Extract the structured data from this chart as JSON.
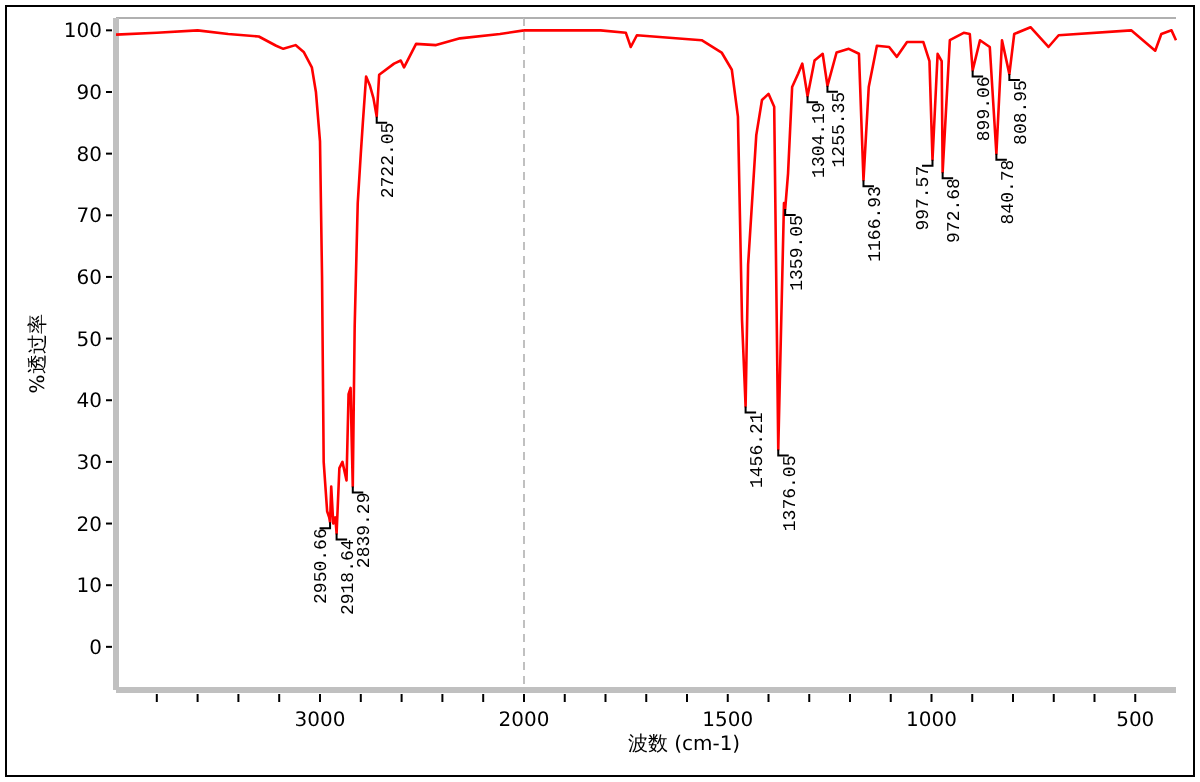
{
  "chart_data": [
    {
      "type": "line",
      "ylabel": "%透过率",
      "xlim": [
        4000,
        2000
      ],
      "ylim": [
        -7,
        102
      ],
      "xticks": [
        {
          "value": 3800,
          "label": null
        },
        {
          "value": 3600,
          "label": null
        },
        {
          "value": 3400,
          "label": null
        },
        {
          "value": 3200,
          "label": null
        },
        3000,
        {
          "value": 2800,
          "label": null
        },
        {
          "value": 2600,
          "label": null
        },
        {
          "value": 2400,
          "label": null
        },
        {
          "value": 2200,
          "label": null
        },
        2000
      ],
      "yticks": [
        0,
        10,
        20,
        30,
        40,
        50,
        60,
        70,
        80,
        90,
        100
      ],
      "series": [
        {
          "color": "#ff0000",
          "x": [
            4000,
            3800,
            3600,
            3450,
            3300,
            3215,
            3180,
            3120,
            3080,
            3040,
            3020,
            3000,
            2990,
            2982,
            2965,
            2955,
            2950.66,
            2945,
            2935,
            2925,
            2918.64,
            2905,
            2890,
            2870,
            2860,
            2850,
            2845,
            2839.29,
            2830,
            2815,
            2800,
            2790,
            2774,
            2755,
            2738,
            2722.05,
            2710,
            2637,
            2604,
            2588,
            2529,
            2431,
            2314,
            2118,
            2000
          ],
          "values": [
            99.3,
            99.6,
            100,
            99.4,
            99,
            97.5,
            97,
            97.6,
            96.5,
            94,
            90,
            82,
            60,
            30,
            22,
            21,
            20.2,
            26,
            20,
            21,
            18.4,
            29,
            30,
            27,
            41,
            42,
            34,
            26,
            52,
            72,
            80,
            85,
            92.5,
            91,
            89,
            86,
            92.8,
            94.6,
            95.1,
            94,
            97.8,
            97.6,
            98.7,
            99.4,
            100
          ]
        }
      ],
      "annotations": [
        {
          "text": "2950.66",
          "x": 2950.66,
          "y": 20.2
        },
        {
          "text": "2918.64",
          "x": 2918.64,
          "y": 18.4
        },
        {
          "text": "2839.29",
          "x": 2839.29,
          "y": 26
        },
        {
          "text": "2722.05",
          "x": 2722.05,
          "y": 86
        }
      ]
    },
    {
      "type": "line",
      "xlabel": "波数 (cm-1)",
      "xlim": [
        2000,
        400
      ],
      "ylim": [
        -7,
        102
      ],
      "tick_labels": "x",
      "xticks": [
        {
          "value": 2000,
          "label": null
        },
        {
          "value": 1900,
          "label": null
        },
        {
          "value": 1800,
          "label": null
        },
        {
          "value": 1700,
          "label": null
        },
        {
          "value": 1600,
          "label": null
        },
        1500,
        {
          "value": 1400,
          "label": null
        },
        {
          "value": 1300,
          "label": null
        },
        {
          "value": 1200,
          "label": null
        },
        {
          "value": 1100,
          "label": null
        },
        1000,
        {
          "value": 900,
          "label": null
        },
        {
          "value": 800,
          "label": null
        },
        {
          "value": 700,
          "label": null
        },
        {
          "value": 600,
          "label": null
        },
        500
      ],
      "yticks": [
        0,
        10,
        20,
        30,
        40,
        50,
        60,
        70,
        80,
        90,
        100
      ],
      "ref_lines": [
        {
          "axis": "x",
          "value": 2000,
          "color": "#c0c0c0",
          "line_style": "dashed"
        }
      ],
      "series": [
        {
          "color": "#ff0000",
          "x": [
            2000,
            1990,
            1812,
            1750,
            1738,
            1723,
            1564,
            1515,
            1490,
            1475,
            1465,
            1456.21,
            1450,
            1430,
            1416,
            1400,
            1386,
            1376.05,
            1362,
            1359.05,
            1352,
            1342,
            1327,
            1317,
            1304.19,
            1287,
            1267,
            1255.35,
            1233,
            1203,
            1178,
            1166.93,
            1154,
            1134,
            1104,
            1085,
            1060,
            1020,
            1005,
            997.57,
            985,
            975,
            972.68,
            955,
            921,
            906,
            899.06,
            881,
            857,
            840.78,
            827,
            808.95,
            797,
            757,
            713,
            688,
            510,
            451,
            436,
            411,
            400
          ],
          "values": [
            100,
            100,
            100,
            99.6,
            97.3,
            99.2,
            98.4,
            96.4,
            93.6,
            86,
            53,
            39,
            62,
            83,
            88.7,
            89.7,
            87.6,
            32,
            72,
            71,
            76.8,
            90.8,
            93,
            94.6,
            89.3,
            95.1,
            96.2,
            91,
            96.4,
            97,
            96.2,
            75.7,
            90.8,
            97.5,
            97.3,
            95.7,
            98.1,
            98.1,
            95,
            79,
            96.2,
            95,
            77,
            98.4,
            99.6,
            99.4,
            93.5,
            98.4,
            97.3,
            80,
            98.4,
            92.9,
            99.4,
            100.5,
            97.3,
            99.2,
            100,
            96.7,
            99.4,
            100,
            98.4
          ]
        }
      ],
      "annotations": [
        {
          "text": "1456.21",
          "x": 1456.21,
          "y": 39
        },
        {
          "text": "1376.05",
          "x": 1376.05,
          "y": 32
        },
        {
          "text": "1359.05",
          "x": 1359.05,
          "y": 71
        },
        {
          "text": "1304.19",
          "x": 1304.19,
          "y": 89.3
        },
        {
          "text": "1255.35",
          "x": 1255.35,
          "y": 91
        },
        {
          "text": "1166.93",
          "x": 1166.93,
          "y": 75.7
        },
        {
          "text": "997.57",
          "x": 997.57,
          "y": 79
        },
        {
          "text": "972.68",
          "x": 972.68,
          "y": 77
        },
        {
          "text": "899.06",
          "x": 899.06,
          "y": 93.5
        },
        {
          "text": "840.78",
          "x": 840.78,
          "y": 80
        },
        {
          "text": "808.95",
          "x": 808.95,
          "y": 92.9
        }
      ]
    }
  ]
}
